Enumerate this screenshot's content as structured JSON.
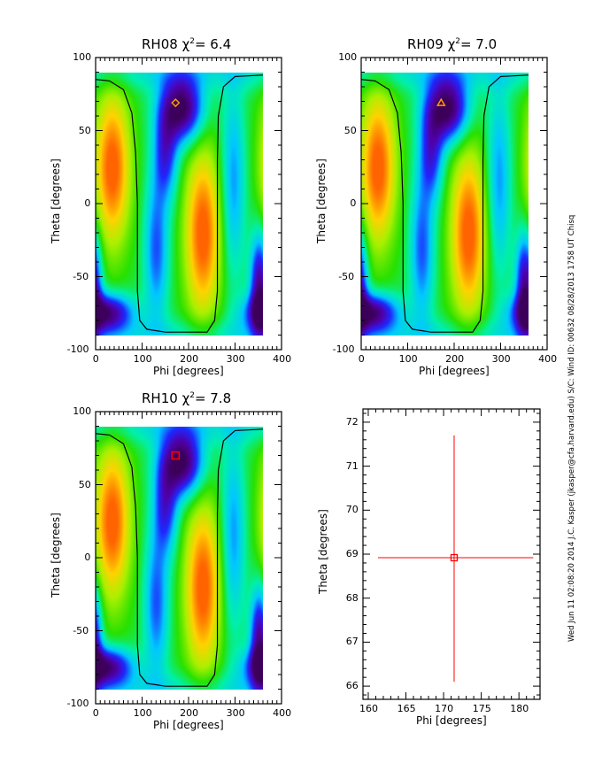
{
  "side_label": "Wed Jun 11 02:08:20 2014   J.C. Kasper (jkasper@cfa.harvard.edu)   S/C: Wind ID: 00632 08/28/2013   1758 UT Chisq",
  "colors": {
    "marker_orange": "#ff9900",
    "error_red": "#ff0000",
    "contour": "#000000"
  },
  "chart_data": [
    {
      "type": "heatmap",
      "title_name": "RH08",
      "chi_label": "χ",
      "chi_sup": "2",
      "chi_value": "=   6.4",
      "xlabel": "Phi [degrees]",
      "ylabel": "Theta [degrees]",
      "xlim": [
        0,
        400
      ],
      "ylim": [
        -100,
        100
      ],
      "xticks": [
        "0",
        "100",
        "200",
        "300",
        "400"
      ],
      "yticks": [
        "-100",
        "-50",
        "0",
        "50",
        "100"
      ],
      "data_extent": {
        "phi": [
          0,
          360
        ],
        "theta": [
          -90,
          90
        ]
      },
      "colormap": "rainbow",
      "marker": {
        "shape": "diamond",
        "phi": 172,
        "theta": 69,
        "color": "#ff9900"
      }
    },
    {
      "type": "heatmap",
      "title_name": "RH09",
      "chi_label": "χ",
      "chi_sup": "2",
      "chi_value": "=   7.0",
      "xlabel": "Phi [degrees]",
      "ylabel": "Theta [degrees]",
      "xlim": [
        0,
        400
      ],
      "ylim": [
        -100,
        100
      ],
      "xticks": [
        "0",
        "100",
        "200",
        "300",
        "400"
      ],
      "yticks": [
        "-100",
        "-50",
        "0",
        "50",
        "100"
      ],
      "data_extent": {
        "phi": [
          0,
          360
        ],
        "theta": [
          -90,
          90
        ]
      },
      "colormap": "rainbow",
      "marker": {
        "shape": "triangle",
        "phi": 172,
        "theta": 69,
        "color": "#ff9900"
      }
    },
    {
      "type": "heatmap",
      "title_name": "RH10",
      "chi_label": "χ",
      "chi_sup": "2",
      "chi_value": "=   7.8",
      "xlabel": "Phi [degrees]",
      "ylabel": "Theta [degrees]",
      "xlim": [
        0,
        400
      ],
      "ylim": [
        -100,
        100
      ],
      "xticks": [
        "0",
        "100",
        "200",
        "300",
        "400"
      ],
      "yticks": [
        "-100",
        "-50",
        "0",
        "50",
        "100"
      ],
      "data_extent": {
        "phi": [
          0,
          360
        ],
        "theta": [
          -90,
          90
        ]
      },
      "colormap": "rainbow",
      "marker": {
        "shape": "square",
        "phi": 172,
        "theta": 70,
        "color": "#ff0000"
      }
    },
    {
      "type": "scatter",
      "title_name": "",
      "xlabel": "Phi [degrees]",
      "ylabel": "Theta [degrees]",
      "xlim": [
        159.3,
        182.8
      ],
      "ylim": [
        65.7,
        72.3
      ],
      "xticks": [
        "160",
        "165",
        "170",
        "175",
        "180"
      ],
      "yticks": [
        "66",
        "67",
        "68",
        "69",
        "70",
        "71",
        "72"
      ],
      "point": {
        "phi": 171.4,
        "theta": 68.92
      },
      "error_x": [
        161.3,
        181.9
      ],
      "error_y": [
        66.1,
        71.7
      ],
      "color": "#ff0000"
    }
  ]
}
